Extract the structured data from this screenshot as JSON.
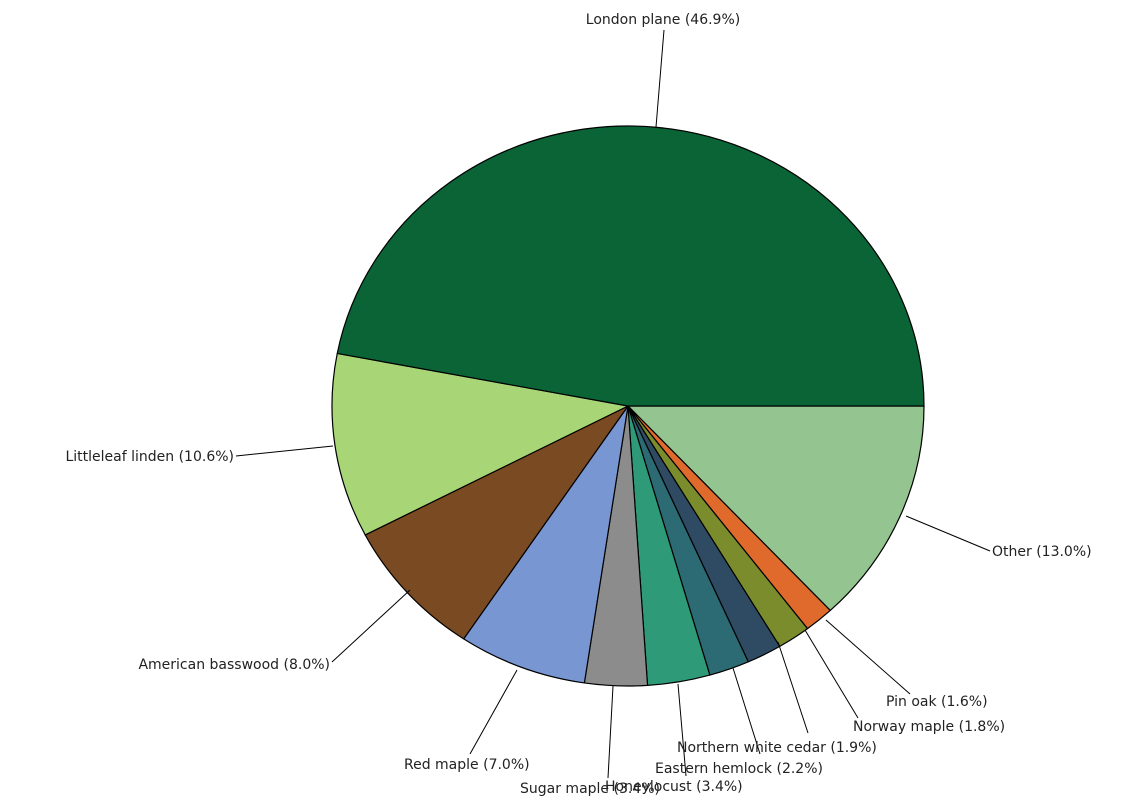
{
  "chart_data": {
    "type": "pie",
    "title": "",
    "start_angle_deg": 0,
    "direction": "clockwise",
    "slices": [
      {
        "name": "Other",
        "value": 13.0,
        "label": "Other (13.0%)",
        "color": "#94c48f"
      },
      {
        "name": "Pin oak",
        "value": 1.6,
        "label": "Pin oak (1.6%)",
        "color": "#e06a2c"
      },
      {
        "name": "Norway maple",
        "value": 1.8,
        "label": "Norway maple (1.8%)",
        "color": "#7a8c2c"
      },
      {
        "name": "Northern white cedar",
        "value": 1.9,
        "label": "Northern white cedar (1.9%)",
        "color": "#2e4b63"
      },
      {
        "name": "Eastern hemlock",
        "value": 2.2,
        "label": "Eastern hemlock (2.2%)",
        "color": "#2c6b73"
      },
      {
        "name": "Honeylocust",
        "value": 3.4,
        "label": "Honeylocust (3.4%)",
        "color": "#2e9a77"
      },
      {
        "name": "Sugar maple",
        "value": 3.4,
        "label": "Sugar maple (3.4%)",
        "color": "#8c8c8c"
      },
      {
        "name": "Red maple",
        "value": 7.0,
        "label": "Red maple (7.0%)",
        "color": "#7896d2"
      },
      {
        "name": "American basswood",
        "value": 8.0,
        "label": "American basswood (8.0%)",
        "color": "#7a4a22"
      },
      {
        "name": "Littleleaf linden",
        "value": 10.6,
        "label": "Littleleaf linden (10.6%)",
        "color": "#a8d677"
      },
      {
        "name": "London plane",
        "value": 46.9,
        "label": "London plane (46.9%)",
        "color": "#0a6436"
      }
    ]
  }
}
